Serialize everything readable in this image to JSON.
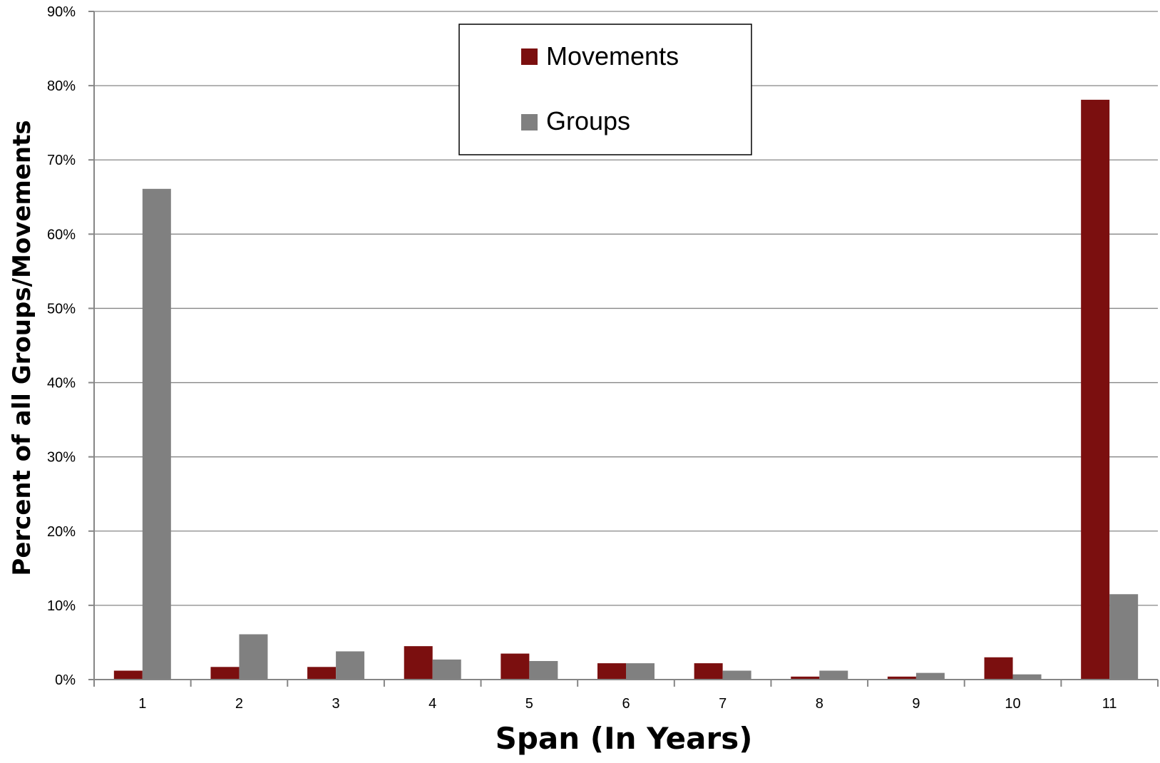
{
  "chart_data": {
    "type": "bar",
    "title": "",
    "xlabel": "Span (In Years)",
    "ylabel": "Percent of all Groups/Movements",
    "categories": [
      "1",
      "2",
      "3",
      "4",
      "5",
      "6",
      "7",
      "8",
      "9",
      "10",
      "11"
    ],
    "series": [
      {
        "name": "Movements",
        "color": "#7b0f0f",
        "values": [
          1.2,
          1.7,
          1.7,
          4.5,
          3.5,
          2.2,
          2.2,
          0.4,
          0.4,
          3.0,
          78.1
        ]
      },
      {
        "name": "Groups",
        "color": "#808080",
        "values": [
          66.1,
          6.1,
          3.8,
          2.7,
          2.5,
          2.2,
          1.2,
          1.2,
          0.9,
          0.7,
          11.5
        ]
      }
    ],
    "ylim": [
      0,
      90
    ],
    "yticks": [
      "0%",
      "10%",
      "20%",
      "30%",
      "40%",
      "50%",
      "60%",
      "70%",
      "80%",
      "90%"
    ],
    "grid": true,
    "legend_position": "top-center"
  }
}
